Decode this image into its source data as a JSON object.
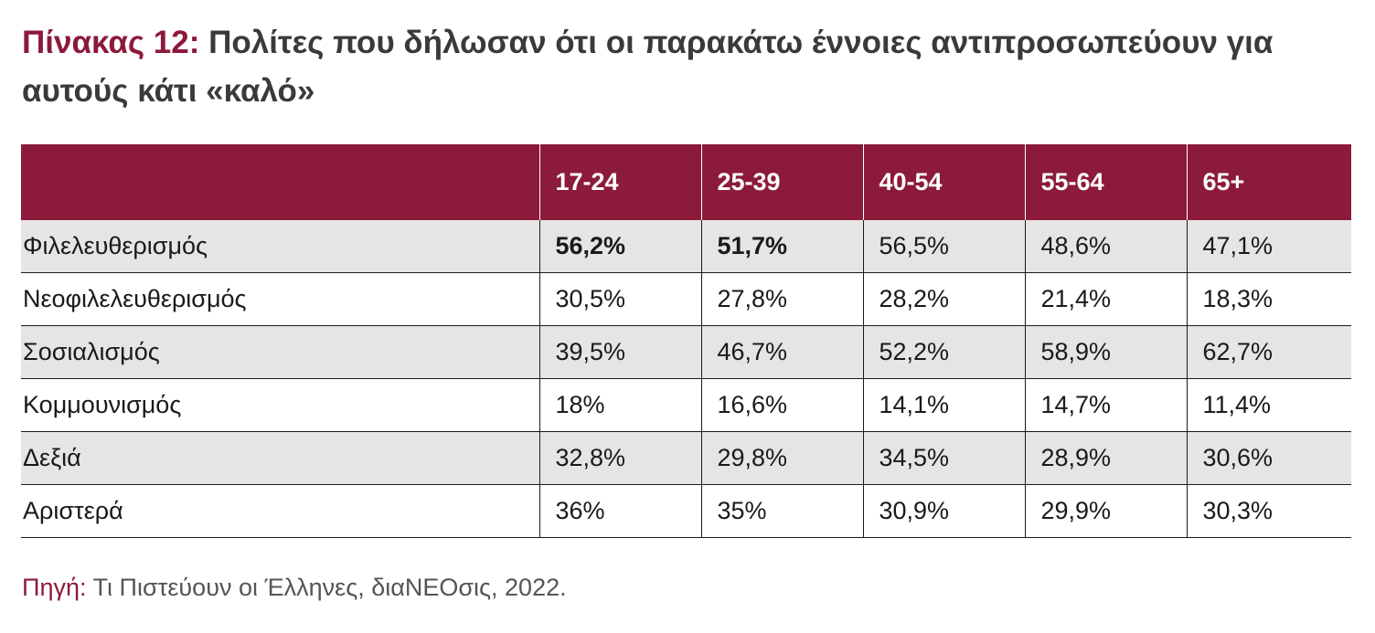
{
  "title": {
    "label": "Πίνακας 12:",
    "text": "Πολίτες που δήλωσαν ότι οι παρακάτω έννοιες αντιπροσωπεύουν για αυτούς κάτι «καλό»"
  },
  "source": {
    "label": "Πηγή:",
    "text": "Τι Πιστεύουν οι Έλληνες, διαΝΕΟσις, 2022."
  },
  "colors": {
    "header_bg": "#8c1a3a",
    "stripe_bg": "#e5e5e5",
    "title_label": "#8c1a3a"
  },
  "chart_data": {
    "type": "table",
    "columns": [
      "",
      "17-24",
      "25-39",
      "40-54",
      "55-64",
      "65+"
    ],
    "rows": [
      {
        "label": "Φιλελευθερισμός",
        "values": [
          "56,2%",
          "51,7%",
          "56,5%",
          "48,6%",
          "47,1%"
        ],
        "bold": [
          true,
          true,
          false,
          false,
          false
        ]
      },
      {
        "label": "Νεοφιλελευθερισμός",
        "values": [
          "30,5%",
          "27,8%",
          "28,2%",
          "21,4%",
          "18,3%"
        ],
        "bold": [
          false,
          false,
          false,
          false,
          false
        ]
      },
      {
        "label": "Σοσιαλισμός",
        "values": [
          "39,5%",
          "46,7%",
          "52,2%",
          "58,9%",
          "62,7%"
        ],
        "bold": [
          false,
          false,
          false,
          false,
          false
        ]
      },
      {
        "label": "Κομμουνισμός",
        "values": [
          "18%",
          "16,6%",
          "14,1%",
          "14,7%",
          "11,4%"
        ],
        "bold": [
          false,
          false,
          false,
          false,
          false
        ]
      },
      {
        "label": "Δεξιά",
        "values": [
          "32,8%",
          "29,8%",
          "34,5%",
          "28,9%",
          "30,6%"
        ],
        "bold": [
          false,
          false,
          false,
          false,
          false
        ]
      },
      {
        "label": "Αριστερά",
        "values": [
          "36%",
          "35%",
          "30,9%",
          "29,9%",
          "30,3%"
        ],
        "bold": [
          false,
          false,
          false,
          false,
          false
        ]
      }
    ]
  }
}
